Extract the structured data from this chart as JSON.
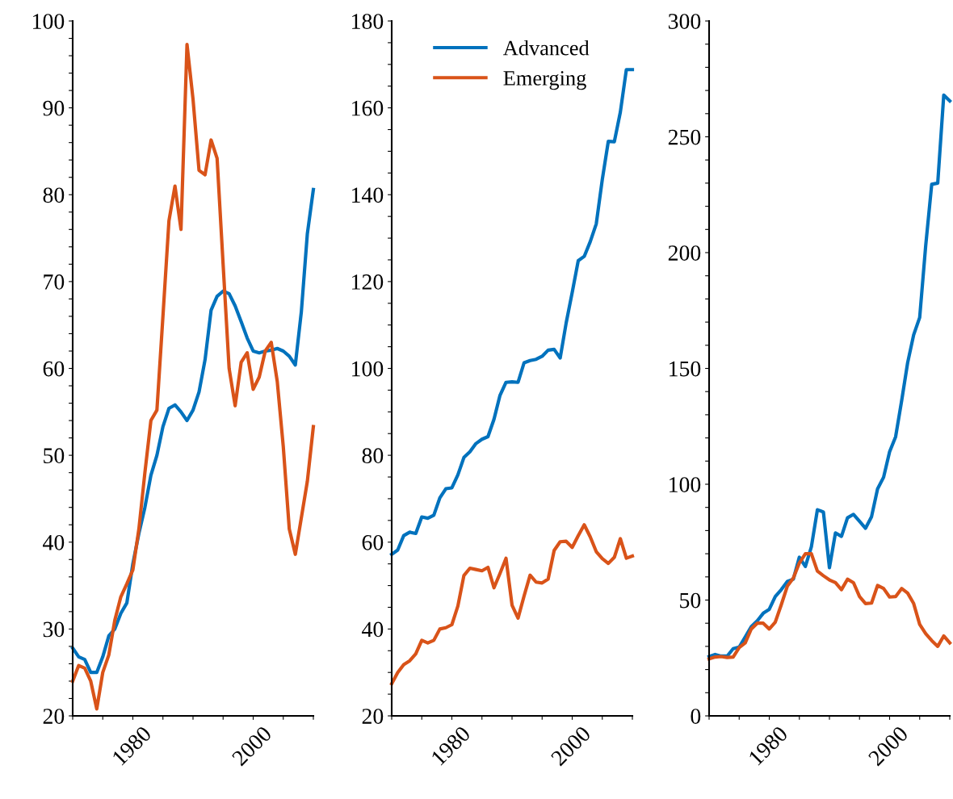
{
  "chart_data": [
    {
      "type": "line",
      "x": [
        1970,
        1971,
        1972,
        1973,
        1974,
        1975,
        1976,
        1977,
        1978,
        1979,
        1980,
        1981,
        1982,
        1983,
        1984,
        1985,
        1986,
        1987,
        1988,
        1989,
        1990,
        1991,
        1992,
        1993,
        1994,
        1995,
        1996,
        1997,
        1998,
        1999,
        2000,
        2001,
        2002,
        2003,
        2004,
        2005,
        2006,
        2007,
        2008,
        2009,
        2010
      ],
      "series": [
        {
          "color": "#0072bd",
          "values": [
            27.8,
            26.8,
            26.5,
            25.0,
            25.0,
            26.8,
            29.2,
            30.0,
            31.8,
            33.0,
            37.5,
            41,
            44,
            47.7,
            50,
            53.3,
            55.4,
            55.8,
            55,
            54,
            55.2,
            57.3,
            61,
            66.7,
            68.3,
            68.9,
            68.6,
            67.2,
            65.4,
            63.5,
            62,
            61.8,
            62,
            62.1,
            62.3,
            62,
            61.4,
            60.4,
            66.5,
            75.5,
            80.6
          ]
        },
        {
          "color": "#d95319",
          "values": [
            24,
            25.8,
            25.5,
            24,
            20.8,
            25,
            27,
            31,
            33.7,
            35.2,
            36.8,
            41.5,
            48,
            54,
            55.2,
            66,
            77,
            81,
            76,
            97.3,
            91,
            82.8,
            82.3,
            86.3,
            84.2,
            72,
            60,
            55.7,
            60.7,
            61.8,
            57.6,
            59,
            62,
            63,
            58.5,
            51,
            41.5,
            38.6,
            42.8,
            47,
            53.3
          ]
        }
      ],
      "xlim": [
        1970,
        2010
      ],
      "xticks": [
        {
          "value": 1970,
          "label": null
        },
        {
          "value": 1975,
          "label": null
        },
        1980,
        {
          "value": 1985,
          "label": null
        },
        {
          "value": 1990,
          "label": null
        },
        {
          "value": 1995,
          "label": null
        },
        2000,
        {
          "value": 2005,
          "label": null
        },
        {
          "value": 2010,
          "label": null
        }
      ],
      "ylim": [
        20,
        100
      ],
      "yticks": [
        20,
        {
          "value": 22,
          "label": null
        },
        {
          "value": 24,
          "label": null
        },
        {
          "value": 26,
          "label": null
        },
        {
          "value": 28,
          "label": null
        },
        30,
        {
          "value": 32,
          "label": null
        },
        {
          "value": 34,
          "label": null
        },
        {
          "value": 36,
          "label": null
        },
        {
          "value": 38,
          "label": null
        },
        40,
        {
          "value": 42,
          "label": null
        },
        {
          "value": 44,
          "label": null
        },
        {
          "value": 46,
          "label": null
        },
        {
          "value": 48,
          "label": null
        },
        50,
        {
          "value": 52,
          "label": null
        },
        {
          "value": 54,
          "label": null
        },
        {
          "value": 56,
          "label": null
        },
        {
          "value": 58,
          "label": null
        },
        60,
        {
          "value": 62,
          "label": null
        },
        {
          "value": 64,
          "label": null
        },
        {
          "value": 66,
          "label": null
        },
        {
          "value": 68,
          "label": null
        },
        70,
        {
          "value": 72,
          "label": null
        },
        {
          "value": 74,
          "label": null
        },
        {
          "value": 76,
          "label": null
        },
        {
          "value": 78,
          "label": null
        },
        80,
        {
          "value": 82,
          "label": null
        },
        {
          "value": 84,
          "label": null
        },
        {
          "value": 86,
          "label": null
        },
        {
          "value": 88,
          "label": null
        },
        90,
        {
          "value": 92,
          "label": null
        },
        {
          "value": 94,
          "label": null
        },
        {
          "value": 96,
          "label": null
        },
        {
          "value": 98,
          "label": null
        },
        100
      ],
      "grid": false,
      "legend": false,
      "marker": "none",
      "line_style": "solid"
    },
    {
      "type": "line",
      "x": [
        1970,
        1971,
        1972,
        1973,
        1974,
        1975,
        1976,
        1977,
        1978,
        1979,
        1980,
        1981,
        1982,
        1983,
        1984,
        1985,
        1986,
        1987,
        1988,
        1989,
        1990,
        1991,
        1992,
        1993,
        1994,
        1995,
        1996,
        1997,
        1998,
        1999,
        2000,
        2001,
        2002,
        2003,
        2004,
        2005,
        2006,
        2007,
        2008,
        2009,
        2010
      ],
      "series": [
        {
          "name": "Advanced",
          "color": "#0072bd",
          "values": [
            57.2,
            58.2,
            61.5,
            62.3,
            62,
            65.8,
            65.5,
            66.2,
            70.2,
            72.3,
            72.5,
            75.5,
            79.5,
            80.8,
            82.7,
            83.7,
            84.3,
            88.3,
            93.8,
            96.8,
            96.9,
            96.8,
            101.3,
            101.8,
            102.1,
            102.8,
            104.2,
            104.4,
            102.4,
            110.5,
            117.5,
            124.8,
            125.8,
            129.2,
            133.3,
            143.5,
            152.3,
            152.2,
            159,
            168.8,
            168.8
          ]
        },
        {
          "name": "Emerging",
          "color": "#d95319",
          "values": [
            27.4,
            30,
            31.8,
            32.7,
            34.3,
            37.4,
            36.8,
            37.4,
            40,
            40.3,
            41,
            45.3,
            52.3,
            54,
            53.7,
            53.4,
            54.2,
            49.5,
            52.8,
            56.3,
            45.5,
            42.5,
            47.6,
            52.4,
            50.8,
            50.6,
            51.5,
            58.1,
            60.1,
            60.2,
            58.8,
            61.5,
            64,
            61.2,
            57.8,
            56.2,
            55.1,
            56.5,
            60.8,
            56.3,
            56.8
          ]
        }
      ],
      "xlim": [
        1970,
        2010
      ],
      "xticks": [
        {
          "value": 1970,
          "label": null
        },
        {
          "value": 1975,
          "label": null
        },
        1980,
        {
          "value": 1985,
          "label": null
        },
        {
          "value": 1990,
          "label": null
        },
        {
          "value": 1995,
          "label": null
        },
        2000,
        {
          "value": 2005,
          "label": null
        },
        {
          "value": 2010,
          "label": null
        }
      ],
      "ylim": [
        20,
        180
      ],
      "yticks": [
        20,
        {
          "value": 25,
          "label": null
        },
        {
          "value": 30,
          "label": null
        },
        {
          "value": 35,
          "label": null
        },
        40,
        {
          "value": 45,
          "label": null
        },
        {
          "value": 50,
          "label": null
        },
        {
          "value": 55,
          "label": null
        },
        60,
        {
          "value": 65,
          "label": null
        },
        {
          "value": 70,
          "label": null
        },
        {
          "value": 75,
          "label": null
        },
        80,
        {
          "value": 85,
          "label": null
        },
        {
          "value": 90,
          "label": null
        },
        {
          "value": 95,
          "label": null
        },
        100,
        {
          "value": 105,
          "label": null
        },
        {
          "value": 110,
          "label": null
        },
        {
          "value": 115,
          "label": null
        },
        120,
        {
          "value": 125,
          "label": null
        },
        {
          "value": 130,
          "label": null
        },
        {
          "value": 135,
          "label": null
        },
        140,
        {
          "value": 145,
          "label": null
        },
        {
          "value": 150,
          "label": null
        },
        {
          "value": 155,
          "label": null
        },
        160,
        {
          "value": 165,
          "label": null
        },
        {
          "value": 170,
          "label": null
        },
        {
          "value": 175,
          "label": null
        },
        180
      ],
      "grid": false,
      "legend": "top",
      "marker": "none",
      "line_style": "solid"
    },
    {
      "type": "line",
      "x": [
        1970,
        1971,
        1972,
        1973,
        1974,
        1975,
        1976,
        1977,
        1978,
        1979,
        1980,
        1981,
        1982,
        1983,
        1984,
        1985,
        1986,
        1987,
        1988,
        1989,
        1990,
        1991,
        1992,
        1993,
        1994,
        1995,
        1996,
        1997,
        1998,
        1999,
        2000,
        2001,
        2002,
        2003,
        2004,
        2005,
        2006,
        2007,
        2008,
        2009,
        2010
      ],
      "series": [
        {
          "color": "#0072bd",
          "values": [
            25.6,
            26.5,
            25.8,
            25.8,
            29,
            29.7,
            34,
            38.5,
            41,
            44.3,
            46,
            51.5,
            54.5,
            58,
            59,
            68.5,
            64.5,
            73,
            89,
            88,
            64,
            79,
            77.5,
            85.5,
            87,
            84,
            81,
            86,
            98,
            103,
            114,
            120.5,
            136,
            152.5,
            164.5,
            172,
            203,
            229.5,
            230,
            268,
            265.5
          ]
        },
        {
          "color": "#d95319",
          "values": [
            24.6,
            25.4,
            25.6,
            25.2,
            25.4,
            29.5,
            31.5,
            37.5,
            40,
            40,
            37.5,
            40.5,
            48,
            56,
            59.5,
            66,
            70,
            70,
            62.5,
            60.5,
            58.7,
            57.5,
            54.5,
            59,
            57.5,
            51.5,
            48.5,
            48.7,
            56.3,
            55,
            51.3,
            51.5,
            55,
            53,
            48.5,
            39.5,
            35.5,
            32.5,
            30,
            34.5,
            31.5
          ]
        }
      ],
      "xlim": [
        1970,
        2010
      ],
      "xticks": [
        {
          "value": 1970,
          "label": null
        },
        {
          "value": 1975,
          "label": null
        },
        1980,
        {
          "value": 1985,
          "label": null
        },
        {
          "value": 1990,
          "label": null
        },
        {
          "value": 1995,
          "label": null
        },
        2000,
        {
          "value": 2005,
          "label": null
        },
        {
          "value": 2010,
          "label": null
        }
      ],
      "ylim": [
        0,
        300
      ],
      "yticks": [
        0,
        {
          "value": 10,
          "label": null
        },
        {
          "value": 20,
          "label": null
        },
        {
          "value": 30,
          "label": null
        },
        {
          "value": 40,
          "label": null
        },
        50,
        {
          "value": 60,
          "label": null
        },
        {
          "value": 70,
          "label": null
        },
        {
          "value": 80,
          "label": null
        },
        {
          "value": 90,
          "label": null
        },
        100,
        {
          "value": 110,
          "label": null
        },
        {
          "value": 120,
          "label": null
        },
        {
          "value": 130,
          "label": null
        },
        {
          "value": 140,
          "label": null
        },
        150,
        {
          "value": 160,
          "label": null
        },
        {
          "value": 170,
          "label": null
        },
        {
          "value": 180,
          "label": null
        },
        {
          "value": 190,
          "label": null
        },
        200,
        {
          "value": 210,
          "label": null
        },
        {
          "value": 220,
          "label": null
        },
        {
          "value": 230,
          "label": null
        },
        {
          "value": 240,
          "label": null
        },
        250,
        {
          "value": 260,
          "label": null
        },
        {
          "value": 270,
          "label": null
        },
        {
          "value": 280,
          "label": null
        },
        {
          "value": 290,
          "label": null
        },
        300
      ],
      "grid": false,
      "legend": false,
      "marker": "none",
      "line_style": "solid"
    }
  ]
}
